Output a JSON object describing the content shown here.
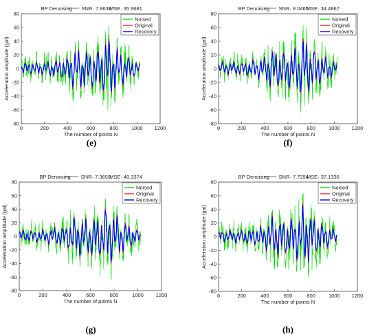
{
  "figure": {
    "panels": [
      {
        "title": "BP Denoising",
        "snr_label": "SNR· 7.8638",
        "mse_label": "MSE· 35.9681",
        "caption": "(e)"
      },
      {
        "title": "BP Denoising",
        "snr_label": "SNR· 8.0465",
        "mse_label": "MSE· 34.4867",
        "caption": "(f)"
      },
      {
        "title": "BP Denoising",
        "snr_label": "SNR· 7.3659",
        "mse_label": "MSE· 40.3374",
        "caption": "(g)"
      },
      {
        "title": "BP Denoising",
        "snr_label": "SNR· 7.7254",
        "mse_label": "MSE· 37.1336",
        "caption": "(h)"
      }
    ]
  },
  "colors": {
    "noised": "#00e000",
    "original": "#ff2020",
    "recovery": "#0000ff",
    "axis": "#444444"
  },
  "chart_data": [
    {
      "type": "line",
      "title": "BP Denoising    SNR· 7.8638   MSE· 35.9681",
      "xlabel": "The number of points N",
      "ylabel": "Acceleration amplitude (gal)",
      "xlim": [
        0,
        1200
      ],
      "ylim": [
        -80,
        80
      ],
      "xticks": [
        0,
        200,
        400,
        600,
        800,
        1000,
        1200
      ],
      "yticks": [
        -80,
        -60,
        -40,
        -20,
        0,
        20,
        40,
        60,
        80
      ],
      "legend": {
        "position": "top-right",
        "entries": [
          "Noised",
          "Original",
          "Recovery"
        ]
      },
      "series": [
        {
          "name": "Noised",
          "x": [
            0,
            100,
            200,
            300,
            400,
            450,
            500,
            550,
            600,
            650,
            700,
            740,
            800,
            850,
            900,
            950,
            1024
          ],
          "y_envelope_max": [
            22,
            25,
            25,
            25,
            30,
            45,
            40,
            40,
            40,
            52,
            55,
            68,
            50,
            40,
            40,
            32,
            20
          ],
          "y_envelope_min": [
            -18,
            -22,
            -22,
            -25,
            -35,
            -55,
            -45,
            -42,
            -48,
            -55,
            -60,
            -75,
            -55,
            -45,
            -40,
            -35,
            -20
          ]
        },
        {
          "name": "Original",
          "x": [
            0,
            200,
            400,
            450,
            600,
            700,
            740,
            800,
            900,
            1024
          ],
          "y_envelope_max": [
            12,
            12,
            20,
            35,
            30,
            40,
            58,
            40,
            25,
            10
          ],
          "y_envelope_min": [
            -10,
            -12,
            -20,
            -35,
            -35,
            -40,
            -52,
            -40,
            -25,
            -10
          ]
        },
        {
          "name": "Recovery",
          "x": [
            0,
            200,
            400,
            450,
            600,
            700,
            740,
            800,
            900,
            1024
          ],
          "y_envelope_max": [
            10,
            10,
            18,
            33,
            28,
            38,
            55,
            38,
            22,
            8
          ],
          "y_envelope_min": [
            -8,
            -10,
            -18,
            -32,
            -32,
            -38,
            -50,
            -38,
            -22,
            -8
          ]
        }
      ]
    },
    {
      "type": "line",
      "title": "BP Denoising    SNR· 8.0465   MSE· 34.4867",
      "xlabel": "The number of points N",
      "ylabel": "Acceleration amplitude (gal)",
      "xlim": [
        0,
        1200
      ],
      "ylim": [
        -80,
        80
      ],
      "xticks": [
        0,
        200,
        400,
        600,
        800,
        1000,
        1200
      ],
      "yticks": [
        -80,
        -60,
        -40,
        -20,
        0,
        20,
        40,
        60,
        80
      ],
      "legend": {
        "position": "top-right",
        "entries": [
          "Noised",
          "Original",
          "Recovery"
        ]
      },
      "series": [
        {
          "name": "Noised",
          "x": [
            0,
            100,
            200,
            300,
            400,
            450,
            500,
            550,
            600,
            650,
            700,
            740,
            800,
            850,
            900,
            950,
            1024
          ],
          "y_envelope_max": [
            22,
            25,
            25,
            25,
            30,
            45,
            40,
            40,
            40,
            52,
            55,
            66,
            50,
            40,
            40,
            32,
            20
          ],
          "y_envelope_min": [
            -18,
            -22,
            -22,
            -25,
            -35,
            -55,
            -45,
            -42,
            -48,
            -55,
            -60,
            -75,
            -55,
            -45,
            -40,
            -35,
            -20
          ]
        },
        {
          "name": "Original",
          "x": [
            0,
            200,
            400,
            450,
            600,
            700,
            740,
            800,
            900,
            1024
          ],
          "y_envelope_max": [
            12,
            12,
            20,
            35,
            30,
            40,
            58,
            40,
            25,
            10
          ],
          "y_envelope_min": [
            -10,
            -12,
            -20,
            -35,
            -35,
            -40,
            -52,
            -40,
            -25,
            -10
          ]
        },
        {
          "name": "Recovery",
          "x": [
            0,
            200,
            400,
            450,
            600,
            700,
            740,
            800,
            900,
            1024
          ],
          "y_envelope_max": [
            10,
            10,
            18,
            33,
            28,
            38,
            55,
            38,
            22,
            8
          ],
          "y_envelope_min": [
            -8,
            -10,
            -18,
            -32,
            -32,
            -38,
            -50,
            -38,
            -22,
            -8
          ]
        }
      ]
    },
    {
      "type": "line",
      "title": "BP Denoising    SNR· 7.3659   MSE· 40.3374",
      "xlabel": "The number of points N",
      "ylabel": "Acceleration amplitude (gal)",
      "xlim": [
        0,
        1200
      ],
      "ylim": [
        -80,
        80
      ],
      "xticks": [
        0,
        200,
        400,
        600,
        800,
        1000,
        1200
      ],
      "yticks": [
        -80,
        -60,
        -40,
        -20,
        0,
        20,
        40,
        60,
        80
      ],
      "legend": {
        "position": "top-right",
        "entries": [
          "Noised",
          "Original",
          "Recovery"
        ]
      },
      "series": [
        {
          "name": "Noised",
          "x": [
            0,
            100,
            200,
            300,
            400,
            450,
            500,
            550,
            600,
            650,
            700,
            740,
            800,
            850,
            900,
            950,
            1024
          ],
          "y_envelope_max": [
            22,
            25,
            25,
            25,
            30,
            45,
            40,
            40,
            40,
            52,
            55,
            66,
            50,
            40,
            40,
            32,
            20
          ],
          "y_envelope_min": [
            -18,
            -22,
            -22,
            -25,
            -35,
            -55,
            -45,
            -42,
            -48,
            -55,
            -60,
            -75,
            -55,
            -45,
            -40,
            -35,
            -20
          ]
        },
        {
          "name": "Original",
          "x": [
            0,
            200,
            400,
            450,
            600,
            700,
            740,
            800,
            900,
            1024
          ],
          "y_envelope_max": [
            12,
            12,
            20,
            35,
            30,
            40,
            58,
            40,
            25,
            10
          ],
          "y_envelope_min": [
            -10,
            -12,
            -20,
            -35,
            -35,
            -40,
            -52,
            -40,
            -25,
            -10
          ]
        },
        {
          "name": "Recovery",
          "x": [
            0,
            200,
            400,
            450,
            600,
            700,
            740,
            800,
            900,
            1024
          ],
          "y_envelope_max": [
            10,
            10,
            18,
            33,
            28,
            38,
            55,
            38,
            22,
            8
          ],
          "y_envelope_min": [
            -8,
            -10,
            -18,
            -32,
            -32,
            -38,
            -50,
            -38,
            -22,
            -8
          ]
        }
      ]
    },
    {
      "type": "line",
      "title": "BP Denoising    SNR· 7.7254   MSE· 37.1336",
      "xlabel": "The number of points N",
      "ylabel": "Acceleration amplitude (gal)",
      "xlim": [
        0,
        1200
      ],
      "ylim": [
        -80,
        80
      ],
      "xticks": [
        0,
        200,
        400,
        600,
        800,
        1000,
        1200
      ],
      "yticks": [
        -80,
        -60,
        -40,
        -20,
        0,
        20,
        40,
        60,
        80
      ],
      "legend": {
        "position": "top-right",
        "entries": [
          "Noised",
          "Original",
          "Recovery"
        ]
      },
      "series": [
        {
          "name": "Noised",
          "x": [
            0,
            100,
            200,
            300,
            400,
            450,
            500,
            550,
            600,
            650,
            700,
            740,
            800,
            850,
            900,
            950,
            1024
          ],
          "y_envelope_max": [
            22,
            25,
            25,
            25,
            30,
            45,
            40,
            40,
            40,
            52,
            55,
            66,
            50,
            40,
            40,
            32,
            20
          ],
          "y_envelope_min": [
            -18,
            -22,
            -22,
            -25,
            -35,
            -55,
            -45,
            -42,
            -48,
            -55,
            -60,
            -75,
            -55,
            -45,
            -40,
            -35,
            -20
          ]
        },
        {
          "name": "Original",
          "x": [
            0,
            200,
            400,
            450,
            600,
            700,
            740,
            800,
            900,
            1024
          ],
          "y_envelope_max": [
            12,
            12,
            20,
            35,
            30,
            40,
            58,
            40,
            25,
            10
          ],
          "y_envelope_min": [
            -10,
            -12,
            -20,
            -35,
            -35,
            -40,
            -52,
            -40,
            -25,
            -10
          ]
        },
        {
          "name": "Recovery",
          "x": [
            0,
            200,
            400,
            450,
            600,
            700,
            740,
            800,
            900,
            1024
          ],
          "y_envelope_max": [
            10,
            10,
            18,
            33,
            28,
            38,
            55,
            38,
            22,
            8
          ],
          "y_envelope_min": [
            -8,
            -10,
            -18,
            -32,
            -32,
            -38,
            -50,
            -38,
            -22,
            -8
          ]
        }
      ]
    }
  ]
}
